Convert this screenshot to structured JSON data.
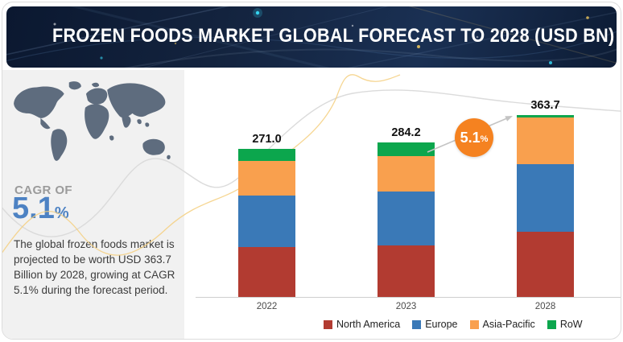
{
  "header": {
    "title": "FROZEN FOODS MARKET GLOBAL FORECAST TO 2028 (USD BN)"
  },
  "sidebar": {
    "map_icon": "world-map",
    "cagr_label": "CAGR OF",
    "cagr_value": "5.1",
    "cagr_unit": "%",
    "description": "The global frozen foods market is projected to be worth USD 363.7 Billion by 2028, growing at CAGR 5.1% during the forecast period."
  },
  "colors": {
    "header_bg": "#12233e",
    "sidebar_bg": "#f1f1f1",
    "cagr_blue": "#4d82c3",
    "badge_orange": "#f58220",
    "north_america_red": "#b23b31",
    "europe_blue": "#3a79b7",
    "asia_pacific_orange": "#f9a04e",
    "row_green": "#0ca64d"
  },
  "chart_data": {
    "type": "bar",
    "stacked": true,
    "title": "Frozen Foods Market Global Forecast to 2028 (USD BN)",
    "categories": [
      "2022",
      "2023",
      "2028"
    ],
    "totals": [
      271.0,
      284.2,
      363.7
    ],
    "total_labels": [
      "271.0",
      "284.2",
      "363.7"
    ],
    "series": [
      {
        "name": "North America",
        "color": "#b23b31",
        "values": [
          91,
          95,
          131
        ]
      },
      {
        "name": "Europe",
        "color": "#3a79b7",
        "values": [
          95,
          99,
          135
        ]
      },
      {
        "name": "Asia-Pacific",
        "color": "#f9a04e",
        "values": [
          63,
          65,
          93
        ]
      },
      {
        "name": "RoW",
        "color": "#0ca64d",
        "values": [
          22,
          25,
          5
        ]
      }
    ],
    "values_estimated_from_pixels": true,
    "annotation": {
      "growth_label": "5.1",
      "growth_unit": "%",
      "badge_color": "#f58220"
    },
    "legend_position": "bottom",
    "axis": {
      "x_labels_shown": true,
      "y_axis_shown": false,
      "gridlines": false
    }
  }
}
